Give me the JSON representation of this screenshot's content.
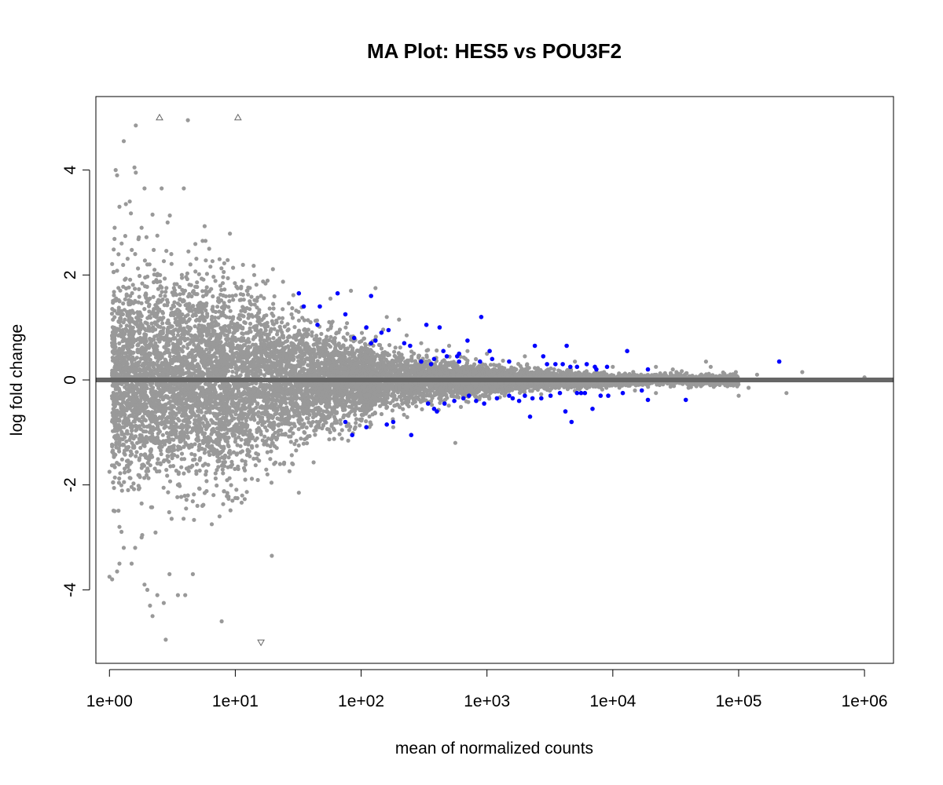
{
  "chart_data": {
    "type": "scatter",
    "title": "MA Plot: HES5 vs POU3F2",
    "xlabel": "mean of normalized counts",
    "ylabel": "log fold change",
    "x_scale": "log10",
    "xlim": [
      0.78,
      1700000.0
    ],
    "ylim": [
      -5.4,
      5.4
    ],
    "x_ticks": [
      1,
      10,
      100,
      1000,
      10000,
      100000,
      1000000
    ],
    "x_tick_labels": [
      "1e+00",
      "1e+01",
      "1e+02",
      "1e+03",
      "1e+04",
      "1e+05",
      "1e+06"
    ],
    "y_ticks": [
      -4,
      -2,
      0,
      2,
      4
    ],
    "y_tick_labels": [
      "-4",
      "-2",
      "0",
      "2",
      "4"
    ],
    "grid": false,
    "legend": "none",
    "reference_line": {
      "y": 0,
      "color": "#666666"
    },
    "colors": {
      "not_significant": "#999999",
      "significant": "#0000ff",
      "out_of_range": "#666666"
    },
    "series": [
      {
        "role": "not-significant",
        "color": "#999999",
        "points": [
          [
            1.12,
            4.0
          ],
          [
            1.15,
            3.9
          ],
          [
            1.3,
            4.55
          ],
          [
            1.62,
            4.85
          ],
          [
            1.58,
            4.05
          ],
          [
            1.62,
            3.95
          ],
          [
            1.9,
            3.65
          ],
          [
            2.6,
            3.65
          ],
          [
            3.9,
            3.65
          ],
          [
            4.2,
            4.95
          ],
          [
            1.2,
            3.3
          ],
          [
            1.35,
            3.35
          ],
          [
            1.45,
            3.4
          ],
          [
            2.2,
            3.15
          ],
          [
            2.9,
            3.0
          ],
          [
            1.1,
            2.9
          ],
          [
            1.8,
            2.9
          ],
          [
            2.4,
            2.75
          ],
          [
            5.5,
            2.65
          ],
          [
            5.8,
            2.65
          ],
          [
            6.2,
            2.5
          ],
          [
            7.5,
            2.3
          ],
          [
            1.25,
            2.6
          ],
          [
            1.6,
            2.4
          ],
          [
            2.0,
            2.2
          ],
          [
            3.1,
            2.4
          ],
          [
            4.4,
            2.2
          ],
          [
            9.5,
            1.6
          ],
          [
            12.5,
            1.7
          ],
          [
            16,
            1.6
          ],
          [
            13,
            1.5
          ],
          [
            20,
            1.45
          ],
          [
            28,
            1.25
          ],
          [
            57,
            1.55
          ],
          [
            83,
            1.7
          ],
          [
            130,
            1.75
          ],
          [
            160,
            1.2
          ],
          [
            200,
            1.15
          ],
          [
            230,
            0.85
          ],
          [
            300,
            0.7
          ],
          [
            500,
            0.65
          ],
          [
            700,
            0.55
          ],
          [
            1000,
            0.5
          ],
          [
            2000,
            0.45
          ],
          [
            5000,
            0.35
          ],
          [
            10000,
            0.25
          ],
          [
            22000,
            0.25
          ],
          [
            30000,
            0.2
          ],
          [
            55000,
            0.35
          ],
          [
            60000,
            0.25
          ],
          [
            95000,
            0.15
          ],
          [
            140000,
            0.1
          ],
          [
            320000,
            0.15
          ],
          [
            1000000,
            0.05
          ],
          [
            120000,
            -0.15
          ],
          [
            240000,
            -0.25
          ],
          [
            100000,
            -0.3
          ],
          [
            40000,
            -0.15
          ],
          [
            22000,
            -0.25
          ],
          [
            15000,
            -0.2
          ],
          [
            1.1,
            -2.5
          ],
          [
            1.2,
            -2.8
          ],
          [
            1.3,
            -3.2
          ],
          [
            1.2,
            -3.5
          ],
          [
            1.0,
            -3.75
          ],
          [
            1.05,
            -3.8
          ],
          [
            1.15,
            -3.65
          ],
          [
            1.5,
            -3.5
          ],
          [
            1.6,
            -3.2
          ],
          [
            1.8,
            -3.0
          ],
          [
            1.9,
            -3.9
          ],
          [
            2.0,
            -4.0
          ],
          [
            2.1,
            -4.3
          ],
          [
            2.2,
            -4.5
          ],
          [
            2.4,
            -4.1
          ],
          [
            2.7,
            -4.25
          ],
          [
            3.0,
            -3.7
          ],
          [
            3.5,
            -4.1
          ],
          [
            4.0,
            -4.1
          ],
          [
            4.6,
            -3.7
          ],
          [
            2.8,
            -4.95
          ],
          [
            7.8,
            -4.6
          ],
          [
            19.5,
            -3.35
          ],
          [
            32,
            -2.15
          ],
          [
            18,
            -1.8
          ],
          [
            14,
            -1.5
          ],
          [
            12,
            -1.9
          ],
          [
            10.5,
            -1.65
          ],
          [
            9.5,
            -2.3
          ],
          [
            7.5,
            -2.6
          ],
          [
            6.5,
            -2.75
          ],
          [
            5,
            -2.4
          ],
          [
            4.2,
            -2.2
          ],
          [
            3.5,
            -2.0
          ],
          [
            1.0,
            -1.75
          ],
          [
            560,
            -1.2
          ],
          [
            180,
            -0.9
          ],
          [
            120,
            -0.85
          ],
          [
            90,
            -0.9
          ],
          [
            60,
            -0.6
          ]
        ]
      },
      {
        "role": "significant",
        "color": "#0000ff",
        "points": [
          [
            32,
            1.65
          ],
          [
            35,
            1.4
          ],
          [
            47,
            1.4
          ],
          [
            65,
            1.65
          ],
          [
            120,
            1.6
          ],
          [
            88,
            0.8
          ],
          [
            110,
            1.0
          ],
          [
            130,
            0.75
          ],
          [
            145,
            0.9
          ],
          [
            165,
            0.95
          ],
          [
            75,
            1.25
          ],
          [
            45,
            1.05
          ],
          [
            120,
            0.7
          ],
          [
            220,
            0.7
          ],
          [
            245,
            0.65
          ],
          [
            330,
            1.05
          ],
          [
            420,
            1.0
          ],
          [
            450,
            0.55
          ],
          [
            600,
            0.5
          ],
          [
            700,
            0.75
          ],
          [
            900,
            1.2
          ],
          [
            1050,
            0.55
          ],
          [
            1100,
            0.4
          ],
          [
            880,
            0.35
          ],
          [
            600,
            0.35
          ],
          [
            580,
            0.45
          ],
          [
            480,
            0.45
          ],
          [
            380,
            0.4
          ],
          [
            360,
            0.3
          ],
          [
            300,
            0.35
          ],
          [
            2400,
            0.65
          ],
          [
            1500,
            0.35
          ],
          [
            2800,
            0.45
          ],
          [
            3000,
            0.3
          ],
          [
            3500,
            0.3
          ],
          [
            4300,
            0.65
          ],
          [
            4000,
            0.3
          ],
          [
            4600,
            0.25
          ],
          [
            5200,
            0.25
          ],
          [
            6200,
            0.3
          ],
          [
            7200,
            0.25
          ],
          [
            7400,
            0.2
          ],
          [
            9000,
            0.25
          ],
          [
            13000,
            0.55
          ],
          [
            19000,
            0.2
          ],
          [
            210000,
            0.35
          ],
          [
            75,
            -0.8
          ],
          [
            85,
            -1.05
          ],
          [
            110,
            -0.9
          ],
          [
            160,
            -0.85
          ],
          [
            180,
            -0.8
          ],
          [
            250,
            -1.05
          ],
          [
            340,
            -0.45
          ],
          [
            380,
            -0.55
          ],
          [
            400,
            -0.6
          ],
          [
            460,
            -0.45
          ],
          [
            550,
            -0.4
          ],
          [
            650,
            -0.35
          ],
          [
            720,
            -0.3
          ],
          [
            820,
            -0.4
          ],
          [
            950,
            -0.45
          ],
          [
            1200,
            -0.35
          ],
          [
            1500,
            -0.3
          ],
          [
            1600,
            -0.35
          ],
          [
            1800,
            -0.4
          ],
          [
            2000,
            -0.3
          ],
          [
            2300,
            -0.35
          ],
          [
            2700,
            -0.35
          ],
          [
            3200,
            -0.3
          ],
          [
            3800,
            -0.25
          ],
          [
            4200,
            -0.6
          ],
          [
            4700,
            -0.8
          ],
          [
            5200,
            -0.25
          ],
          [
            6000,
            -0.25
          ],
          [
            6900,
            -0.55
          ],
          [
            8000,
            -0.3
          ],
          [
            9200,
            -0.3
          ],
          [
            12000,
            -0.25
          ],
          [
            17000,
            -0.2
          ],
          [
            19000,
            -0.38
          ],
          [
            38000,
            -0.38
          ],
          [
            2200,
            -0.7
          ],
          [
            5600,
            -0.25
          ]
        ]
      },
      {
        "role": "out-of-range",
        "color": "#666666",
        "points": [
          [
            2.5,
            5.0,
            "up"
          ],
          [
            10.5,
            5.0,
            "up"
          ],
          [
            16,
            -5.0,
            "down"
          ]
        ]
      }
    ]
  }
}
